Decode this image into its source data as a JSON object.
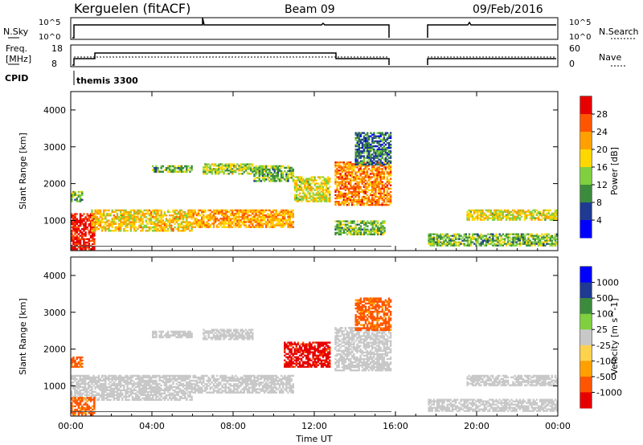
{
  "header": {
    "station": "Kerguelen (fitACF)",
    "beam": "Beam 09",
    "date": "09/Feb/2016"
  },
  "panels": {
    "nsky": {
      "left_label": "N.Sky",
      "right_label": "N.Search",
      "left_ticks": [
        "10^5",
        "10^0"
      ],
      "right_ticks": [
        "10^5",
        "10^0"
      ]
    },
    "freq": {
      "left_label_line1": "Freq.",
      "left_label_line2": "[MHz]",
      "right_label": "Nave",
      "left_ticks": [
        "18",
        "8"
      ],
      "right_ticks": [
        "60",
        "0"
      ]
    },
    "cpid": {
      "label": "CPID",
      "program": "themis 3300"
    }
  },
  "colors": {
    "power_scale": [
      "#0000ff",
      "#1f3a93",
      "#3c8a3c",
      "#7fcf3f",
      "#ffd700",
      "#ff9f00",
      "#ff5500",
      "#e60000"
    ],
    "velocity_scale": [
      "#e60000",
      "#ff5500",
      "#ff9f00",
      "#ffd24d",
      "#c8c8c8",
      "#7fcf3f",
      "#3c8a3c",
      "#1f3a93",
      "#0000ff"
    ]
  },
  "chart_data": [
    {
      "type": "heatmap",
      "title": "",
      "xlabel": "Time UT",
      "ylabel": "Slant Range [km]",
      "x_tick_labels": [
        "00:00",
        "04:00",
        "08:00",
        "12:00",
        "16:00",
        "20:00",
        "00:00"
      ],
      "y_tick_labels": [
        "1000",
        "2000",
        "3000",
        "4000"
      ],
      "xlim_hours": [
        0,
        24
      ],
      "ylim_km": [
        180,
        4500
      ],
      "colorbar": {
        "label": "Power [dB]",
        "tick_labels": [
          "4",
          "8",
          "12",
          "16",
          "20",
          "24",
          "28"
        ],
        "range": [
          0,
          30
        ]
      },
      "data_gap_hours": [
        15.8,
        17.6
      ],
      "echo_regions": [
        {
          "t0": 0.0,
          "t1": 1.2,
          "r0": 200,
          "r1": 1200,
          "level": 28
        },
        {
          "t0": 1.0,
          "t1": 6.0,
          "r0": 700,
          "r1": 1300,
          "level": 18
        },
        {
          "t0": 6.0,
          "t1": 11.0,
          "r0": 800,
          "r1": 1300,
          "level": 20
        },
        {
          "t0": 4.0,
          "t1": 6.0,
          "r0": 2300,
          "r1": 2500,
          "level": 12
        },
        {
          "t0": 6.5,
          "t1": 9.0,
          "r0": 2250,
          "r1": 2550,
          "level": 14
        },
        {
          "t0": 9.0,
          "t1": 11.0,
          "r0": 2050,
          "r1": 2500,
          "level": 12
        },
        {
          "t0": 11.0,
          "t1": 12.8,
          "r0": 1500,
          "r1": 2200,
          "level": 16
        },
        {
          "t0": 13.0,
          "t1": 15.8,
          "r0": 1400,
          "r1": 2600,
          "level": 22
        },
        {
          "t0": 14.0,
          "t1": 15.8,
          "r0": 2500,
          "r1": 3400,
          "level": 8
        },
        {
          "t0": 13.0,
          "t1": 15.5,
          "r0": 600,
          "r1": 1000,
          "level": 12
        },
        {
          "t0": 19.5,
          "t1": 24.0,
          "r0": 1000,
          "r1": 1300,
          "level": 16
        },
        {
          "t0": 17.6,
          "t1": 24.0,
          "r0": 300,
          "r1": 650,
          "level": 12
        },
        {
          "t0": 0.0,
          "t1": 0.6,
          "r0": 1500,
          "r1": 1800,
          "level": 12
        }
      ]
    },
    {
      "type": "heatmap",
      "title": "",
      "xlabel": "Time UT",
      "ylabel": "Slant Range [km]",
      "x_tick_labels": [
        "00:00",
        "04:00",
        "08:00",
        "12:00",
        "16:00",
        "20:00",
        "00:00"
      ],
      "y_tick_labels": [
        "1000",
        "2000",
        "3000",
        "4000"
      ],
      "xlim_hours": [
        0,
        24
      ],
      "ylim_km": [
        180,
        4500
      ],
      "colorbar": {
        "label": "Velocity [m s^-1]",
        "tick_labels": [
          "1000",
          "500",
          "100",
          "25",
          "-25",
          "-100",
          "-500",
          "-1000"
        ],
        "range": [
          -1000,
          1000
        ]
      },
      "data_gap_hours": [
        15.8,
        17.6
      ],
      "echo_regions": [
        {
          "t0": 0.0,
          "t1": 6.0,
          "r0": 600,
          "r1": 1300,
          "level": 0
        },
        {
          "t0": 6.0,
          "t1": 11.0,
          "r0": 800,
          "r1": 1300,
          "level": 0
        },
        {
          "t0": 4.0,
          "t1": 6.0,
          "r0": 2300,
          "r1": 2500,
          "level": 0
        },
        {
          "t0": 6.5,
          "t1": 9.0,
          "r0": 2250,
          "r1": 2550,
          "level": 0
        },
        {
          "t0": 10.5,
          "t1": 12.8,
          "r0": 1500,
          "r1": 2200,
          "level": -800
        },
        {
          "t0": 13.0,
          "t1": 15.8,
          "r0": 1400,
          "r1": 2600,
          "level": 0
        },
        {
          "t0": 14.0,
          "t1": 15.8,
          "r0": 2500,
          "r1": 3400,
          "level": -150
        },
        {
          "t0": 0.0,
          "t1": 1.2,
          "r0": 200,
          "r1": 700,
          "level": -150
        },
        {
          "t0": 19.5,
          "t1": 24.0,
          "r0": 1000,
          "r1": 1300,
          "level": 0
        },
        {
          "t0": 17.6,
          "t1": 24.0,
          "r0": 300,
          "r1": 650,
          "level": 60
        },
        {
          "t0": 0.0,
          "t1": 0.6,
          "r0": 1500,
          "r1": 1800,
          "level": -150
        }
      ]
    }
  ]
}
